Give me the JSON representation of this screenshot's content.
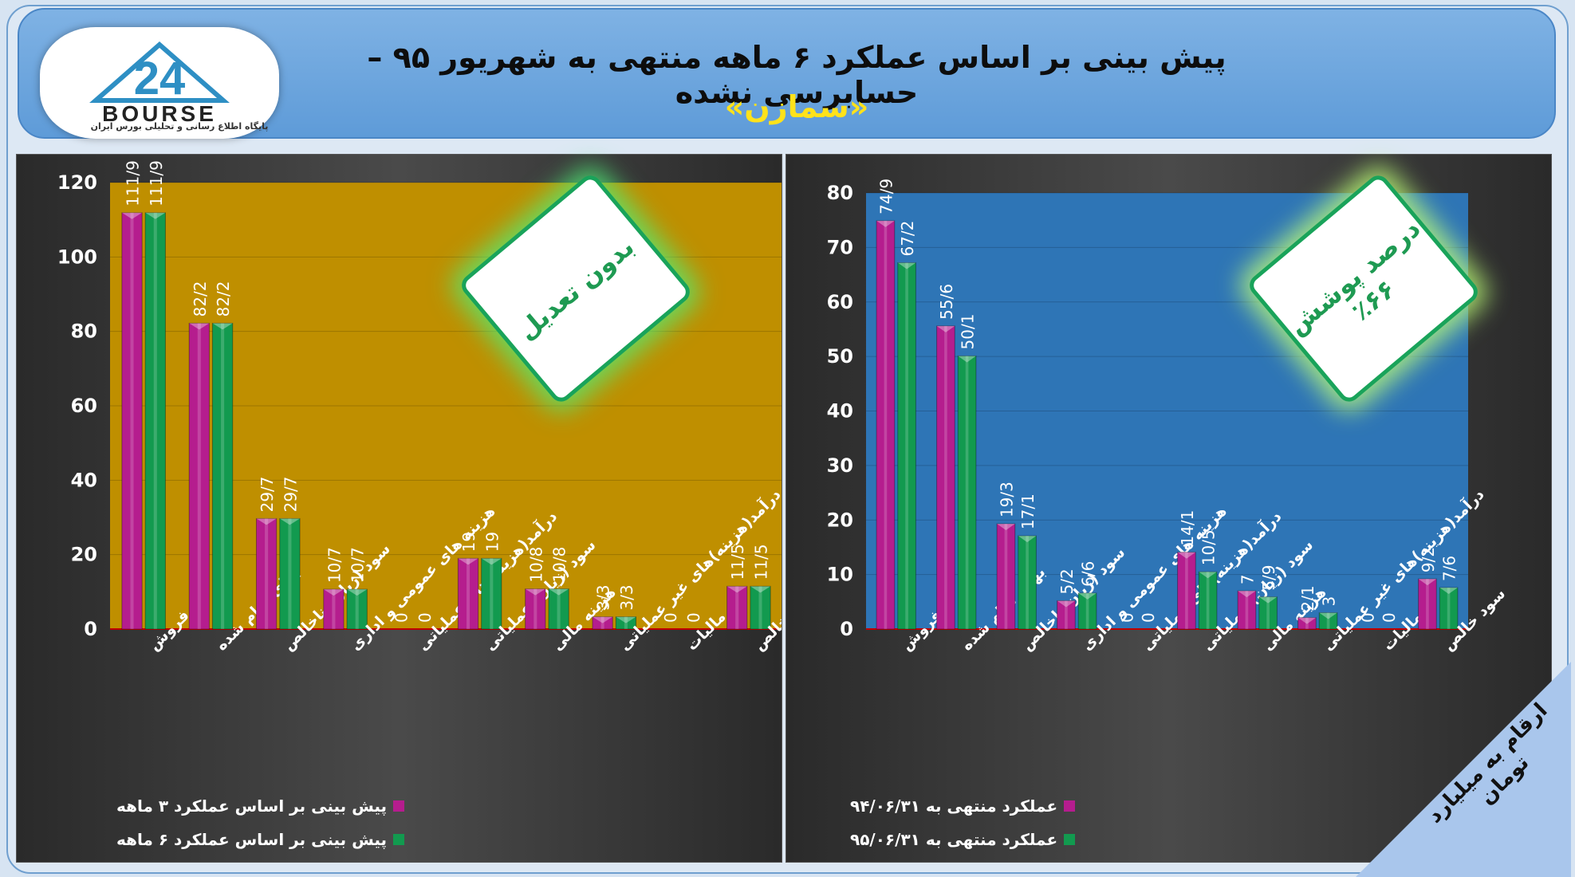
{
  "header": {
    "title_line1": "پیش بینی بر اساس عملکرد ۶ ماهه منتهی به شهریور ۹۵ –حسابرسی نشده",
    "title_line2": "«سمازن»",
    "logo_text": "BOURSE",
    "logo_number": "24",
    "logo_subtitle": "پایگاه اطلاع رسانی و تحلیلی بورس ایران"
  },
  "badges": {
    "left": "بدون تعدیل",
    "right_line1": "درصد پوشش",
    "right_line2": "٪۶۶"
  },
  "corner_note": "ارقام به میلیارد تومان",
  "colors": {
    "series_a": "#b51d8e",
    "series_b": "#129a4f",
    "left_bg": "#bf8f00",
    "right_bg": "#2e75b6"
  },
  "chart_data": [
    {
      "type": "bar",
      "categories": [
        "فروش",
        "بهای تمام شده",
        "سود (زیان) ناخالص",
        "هزینه های عمومی و اداری",
        "درآمد(هزینه)های عملیاتی",
        "سود (زیان) عملیاتی",
        "هزینه مالی",
        "درآمد(هزینه)های غیر عملیاتی",
        "مالیات",
        "سود خالص"
      ],
      "series": [
        {
          "name": "پیش بینی بر اساس عملکرد ۳ ماهه",
          "values": [
            111.9,
            82.2,
            29.7,
            10.7,
            0,
            19,
            10.8,
            3.3,
            0,
            11.5
          ],
          "labels": [
            "111/9",
            "82/2",
            "29/7",
            "10/7",
            "0",
            "19",
            "10/8",
            "3/3",
            "0",
            "11/5"
          ]
        },
        {
          "name": "پیش بینی بر اساس عملکرد ۶ ماهه",
          "values": [
            111.9,
            82.2,
            29.7,
            10.7,
            0,
            19,
            10.8,
            3.3,
            0,
            11.5
          ],
          "labels": [
            "111/9",
            "82/2",
            "29/7",
            "10/7",
            "0",
            "19",
            "10/8",
            "3/3",
            "0",
            "11/5"
          ]
        }
      ],
      "ylim": [
        0,
        120
      ],
      "yticks": [
        "0",
        "20",
        "40",
        "60",
        "80",
        "100",
        "120"
      ]
    },
    {
      "type": "bar",
      "categories": [
        "فروش",
        "بهای تمام شده",
        "سود (زیان)ناخالص",
        "هزینه های عمومی و اداری",
        "درآمد(هزینه)های عملیاتی",
        "سود (زیان) عملیاتی",
        "هزینه مالی",
        "درآمد(هزینه)های غیر عملیاتی",
        "مالیات",
        "سود خالص"
      ],
      "series": [
        {
          "name": "عملکرد منتهی به ۹۴/۰۶/۳۱",
          "values": [
            74.9,
            55.6,
            19.3,
            5.2,
            0,
            14.1,
            7,
            2.1,
            0,
            9.2
          ],
          "labels": [
            "74/9",
            "55/6",
            "19/3",
            "5/2",
            "0",
            "14/1",
            "7",
            "2/1",
            "0",
            "9/2"
          ]
        },
        {
          "name": "عملکرد منتهی به ۹۵/۰۶/۳۱",
          "values": [
            67.2,
            50.1,
            17.1,
            6.6,
            0,
            10.5,
            5.9,
            3,
            0,
            7.6
          ],
          "labels": [
            "67/2",
            "50/1",
            "17/1",
            "6/6",
            "0",
            "10/5",
            "5/9",
            "3",
            "0",
            "7/6"
          ]
        }
      ],
      "ylim": [
        0,
        80
      ],
      "yticks": [
        "0",
        "10",
        "20",
        "30",
        "40",
        "50",
        "60",
        "70",
        "80"
      ]
    }
  ]
}
